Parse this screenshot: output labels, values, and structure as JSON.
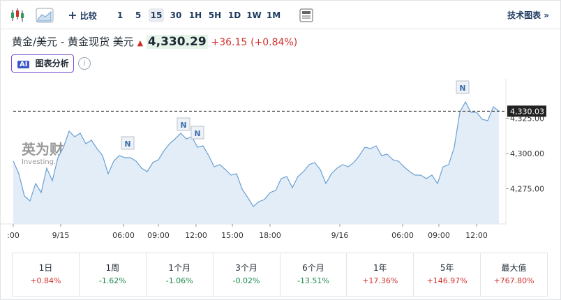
{
  "toolbar": {
    "compare": "比较",
    "intervals": [
      "1",
      "5",
      "15",
      "30",
      "1H",
      "5H",
      "1D",
      "1W",
      "1M"
    ],
    "selected": "15",
    "tech_chart": "技术图表 »"
  },
  "header": {
    "title": "黄金/美元 - 黄金现货 美元",
    "price": "4,330.29",
    "change": "+36.15",
    "change_pct": "(+0.84%)",
    "ai_badge": "AI",
    "ai_button": "图表分析",
    "info": "i"
  },
  "watermark": {
    "brand": "英为财情",
    "site": "Investing.com"
  },
  "chart_data": {
    "type": "line",
    "series": [
      {
        "name": "黄金现货",
        "color": "#6aa0d4",
        "values": [
          4294.55,
          4285.64,
          4269.8,
          4266.34,
          4278.71,
          4272.28,
          4289.6,
          4280.69,
          4297.03,
          4304.46,
          4315.84,
          4311.88,
          4314.36,
          4306.93,
          4309.41,
          4303.47,
          4298.51,
          4285.64,
          4294.55,
          4298.51,
          4297.03,
          4297.03,
          4294.55,
          4289.6,
          4287.13,
          4293.56,
          4295.54,
          4301.98,
          4306.93,
          4310.4,
          4314.36,
          4310.4,
          4311.88,
          4304.46,
          4305.45,
          4298.51,
          4290.59,
          4292.08,
          4288.61,
          4284.65,
          4285.64,
          4274.75,
          4268.81,
          4262.38,
          4265.84,
          4267.33,
          4272.28,
          4273.76,
          4282.18,
          4283.66,
          4275.74,
          4283.66,
          4287.13,
          4292.08,
          4293.56,
          4288.61,
          4278.71,
          4285.64,
          4289.6,
          4292.08,
          4290.59,
          4293.56,
          4298.51,
          4304.46,
          4303.47,
          4305.45,
          4298.51,
          4299.5,
          4295.54,
          4294.55,
          4290.59,
          4287.13,
          4284.65,
          4284.65,
          4282.18,
          4284.65,
          4278.71,
          4290.59,
          4292.08,
          4304.46,
          4329.21,
          4336.63,
          4329.21,
          4329.21,
          4324.26,
          4323.27,
          4333.17,
          4330.03
        ]
      }
    ],
    "xlim": [
      0,
      88.25
    ],
    "xticks": [
      {
        "value": 0,
        "label": ":00"
      },
      {
        "value": 8.5,
        "label": "9/15"
      },
      {
        "value": 19.75,
        "label": "06:00"
      },
      {
        "value": 26,
        "label": "09:00"
      },
      {
        "value": 32.75,
        "label": "12:00"
      },
      {
        "value": 39.25,
        "label": "15:00"
      },
      {
        "value": 46,
        "label": "18:00"
      },
      {
        "value": 58.5,
        "label": "9/16"
      },
      {
        "value": 69.75,
        "label": "06:00"
      },
      {
        "value": 76.25,
        "label": "09:00"
      },
      {
        "value": 83,
        "label": "12:00"
      }
    ],
    "ylim": [
      4250,
      4350
    ],
    "yticks": [
      {
        "value": 4275,
        "label": "4,275.00"
      },
      {
        "value": 4300,
        "label": "4,300.00"
      },
      {
        "value": 4325,
        "label": "4,325.00"
      }
    ],
    "last_price": {
      "value": 4330.03,
      "label": "4,330.03"
    },
    "annotations": [
      {
        "x": 20.5,
        "text": "N"
      },
      {
        "x": 30.5,
        "text": "N"
      },
      {
        "x": 33,
        "text": "N"
      },
      {
        "x": 80.5,
        "text": "N"
      }
    ]
  },
  "performance": [
    {
      "period": "1日",
      "change": "+0.84%"
    },
    {
      "period": "1周",
      "change": "-1.62%"
    },
    {
      "period": "1个月",
      "change": "-1.06%"
    },
    {
      "period": "3个月",
      "change": "-0.02%"
    },
    {
      "period": "6个月",
      "change": "-13.51%"
    },
    {
      "period": "1年",
      "change": "+17.36%"
    },
    {
      "period": "5年",
      "change": "+146.97%"
    },
    {
      "period": "最大值",
      "change": "+767.80%"
    }
  ]
}
